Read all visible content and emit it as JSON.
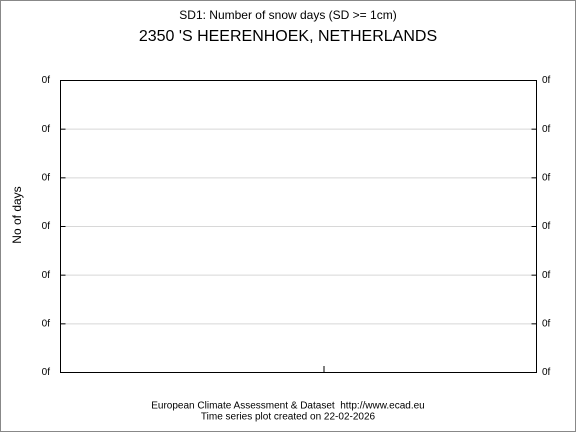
{
  "chart_data": {
    "type": "line",
    "title": "SD1: Number of snow days (SD >= 1cm)",
    "subtitle": "2350 'S HEERENHOEK, NETHERLANDS",
    "y_label": "No of days",
    "footer": [
      "European Climate Assessment & Dataset  http://www.ecad.eu",
      "Time series plot created on 22-02-2026"
    ],
    "series": [],
    "ylim": [
      0,
      6
    ],
    "yticks": [
      {
        "value": 0,
        "label": "0f"
      },
      {
        "value": 1,
        "label": "0f"
      },
      {
        "value": 2,
        "label": "0f"
      },
      {
        "value": 3,
        "label": "0f"
      },
      {
        "value": 4,
        "label": "0f"
      },
      {
        "value": 5,
        "label": "0f"
      },
      {
        "value": 6,
        "label": "0f"
      }
    ],
    "grid": true
  }
}
